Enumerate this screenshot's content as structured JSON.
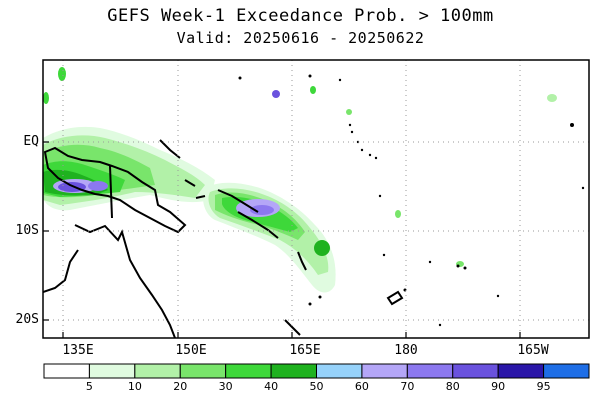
{
  "title": "GEFS Week-1 Exceedance Prob. > 100mm",
  "subtitle": "Valid: 20250616 - 20250622",
  "lat_labels": [
    "EQ",
    "10S",
    "20S"
  ],
  "lon_labels": [
    "135E",
    "150E",
    "165E",
    "180",
    "165W"
  ],
  "colorbar": {
    "bins": [
      {
        "label": "5",
        "color": "#ffffff"
      },
      {
        "label": "10",
        "color": "#e0fbe0"
      },
      {
        "label": "20",
        "color": "#b2f1a8"
      },
      {
        "label": "30",
        "color": "#79e56b"
      },
      {
        "label": "40",
        "color": "#3ed83a"
      },
      {
        "label": "50",
        "color": "#1fb21f"
      },
      {
        "label": "60",
        "color": "#96d2fa"
      },
      {
        "label": "70",
        "color": "#b4a6f7"
      },
      {
        "label": "80",
        "color": "#8c78ef"
      },
      {
        "label": "90",
        "color": "#6a52de"
      },
      {
        "label": "95",
        "color": "#2a16a8"
      },
      {
        "label": "",
        "color": "#1e6ee6"
      }
    ]
  }
}
